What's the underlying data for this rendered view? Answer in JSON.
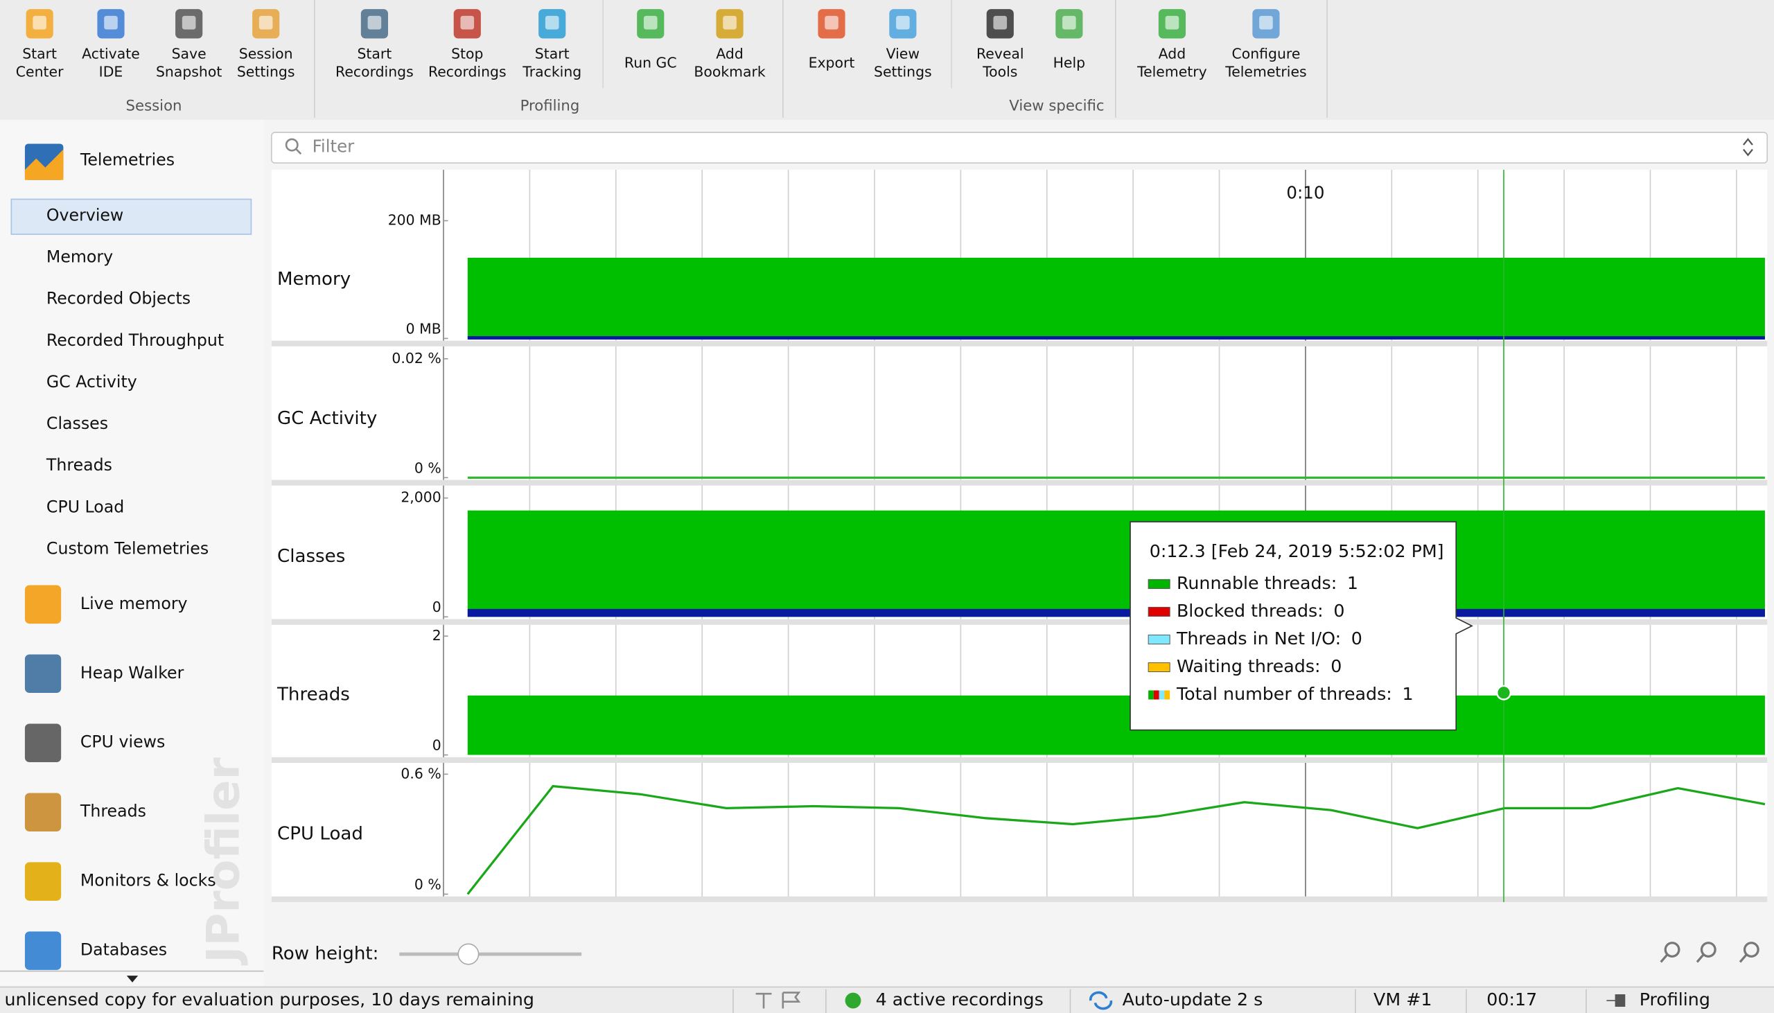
{
  "toolbar": {
    "groups": [
      {
        "label": "Session",
        "buttons": [
          {
            "label": [
              "Start",
              "Center"
            ]
          },
          {
            "label": [
              "Activate",
              "IDE"
            ]
          },
          {
            "label": [
              "Save",
              "Snapshot"
            ]
          },
          {
            "label": [
              "Session",
              "Settings"
            ]
          }
        ]
      },
      {
        "label": "Profiling",
        "buttons": [
          {
            "label": [
              "Start",
              "Recordings"
            ]
          },
          {
            "label": [
              "Stop",
              "Recordings"
            ]
          },
          {
            "label": [
              "Start",
              "Tracking"
            ]
          },
          {
            "label": [
              "Run GC"
            ]
          },
          {
            "label": [
              "Add",
              "Bookmark"
            ]
          }
        ]
      },
      {
        "label": "View specific",
        "buttons": [
          {
            "label": [
              "Export"
            ]
          },
          {
            "label": [
              "View",
              "Settings"
            ]
          },
          {
            "label": [
              "Reveal",
              "Tools"
            ]
          },
          {
            "label": [
              "Help"
            ]
          }
        ]
      },
      {
        "buttons": [
          {
            "label": [
              "Add",
              "Telemetry"
            ]
          },
          {
            "label": [
              "Configure",
              "Telemetries"
            ]
          }
        ]
      }
    ]
  },
  "sidebar": {
    "header": "Telemetries",
    "items": [
      "Overview",
      "Memory",
      "Recorded Objects",
      "Recorded Throughput",
      "GC Activity",
      "Classes",
      "Threads",
      "CPU Load",
      "Custom Telemetries"
    ],
    "selected": 0,
    "sections": [
      "Live memory",
      "Heap Walker",
      "CPU views",
      "Threads",
      "Monitors & locks",
      "Databases"
    ],
    "watermark": "JProfiler"
  },
  "filter": {
    "placeholder": "Filter"
  },
  "telemetry": {
    "xlim": [
      0,
      15.33
    ],
    "xticks": [
      {
        "value": 10,
        "label": "0:10"
      }
    ],
    "x": [
      0.28,
      1.27,
      2.28,
      3.28,
      4.29,
      5.29,
      6.29,
      7.3,
      8.29,
      9.29,
      10.3,
      11.3,
      12.31,
      13.31,
      14.32,
      15.33
    ],
    "cursor": 12.3,
    "rows": [
      {
        "name": "Memory",
        "style": "area",
        "color": "#00bf00",
        "yticks": [
          {
            "value": 0,
            "label": "0 MB"
          },
          {
            "value": 200,
            "label": "200 MB"
          }
        ],
        "values": [
          137,
          137,
          137,
          137,
          137,
          137,
          137,
          137,
          137,
          137,
          137,
          137,
          137,
          137,
          137,
          137
        ]
      },
      {
        "name": "GC Activity",
        "style": "line",
        "color": "#33b833",
        "yticks": [
          {
            "value": 0,
            "label": "0 %"
          },
          {
            "value": 0.02,
            "label": "0.02 %"
          }
        ],
        "values": [
          0,
          0,
          0,
          0,
          0,
          0,
          0,
          0,
          0,
          0,
          0,
          0,
          0,
          0,
          0,
          0
        ]
      },
      {
        "name": "Classes",
        "style": "area",
        "color": "#00bf00",
        "yticks": [
          {
            "value": 0,
            "label": "0"
          },
          {
            "value": 2000,
            "label": "2,000"
          }
        ],
        "values": [
          1790,
          1790,
          1790,
          1790,
          1790,
          1790,
          1790,
          1790,
          1790,
          1790,
          1790,
          1790,
          1790,
          1790,
          1790,
          1790
        ]
      },
      {
        "name": "Threads",
        "style": "area",
        "color": "#00bf00",
        "yticks": [
          0,
          2
        ],
        "values": [
          1,
          1,
          1,
          1,
          1,
          1,
          1,
          1,
          1,
          1,
          1,
          1,
          1,
          1,
          1,
          1
        ]
      },
      {
        "name": "CPU Load",
        "style": "line",
        "color": "#1aa81a",
        "yticks": [
          {
            "value": 0,
            "label": "0 %"
          },
          {
            "value": 0.6,
            "label": "0.6 %"
          }
        ],
        "values": [
          0,
          0.54,
          0.5,
          0.43,
          0.44,
          0.43,
          0.38,
          0.35,
          0.39,
          0.46,
          0.42,
          0.33,
          0.43,
          0.43,
          0.53,
          0.45
        ]
      }
    ]
  },
  "tooltip": {
    "title": "0:12.3 [Feb 24, 2019 5:52:02 PM]",
    "items": [
      {
        "label": "Runnable threads:",
        "value": 1,
        "color": "#00b400"
      },
      {
        "label": "Blocked threads:",
        "value": 0,
        "color": "#e00000"
      },
      {
        "label": "Threads in Net I/O:",
        "value": 0,
        "color": "#7fe8ff"
      },
      {
        "label": "Waiting threads:",
        "value": 0,
        "color": "#ffc000"
      },
      {
        "label": "Total number of threads:",
        "value": 1
      }
    ]
  },
  "footer": {
    "row_height": "Row height:"
  },
  "status": {
    "license": "unlicensed copy for evaluation purposes, 10 days remaining",
    "recordings": "4 active recordings",
    "update": "Auto-update 2 s",
    "vm": "VM #1",
    "time": "00:17",
    "mode": "Profiling"
  }
}
